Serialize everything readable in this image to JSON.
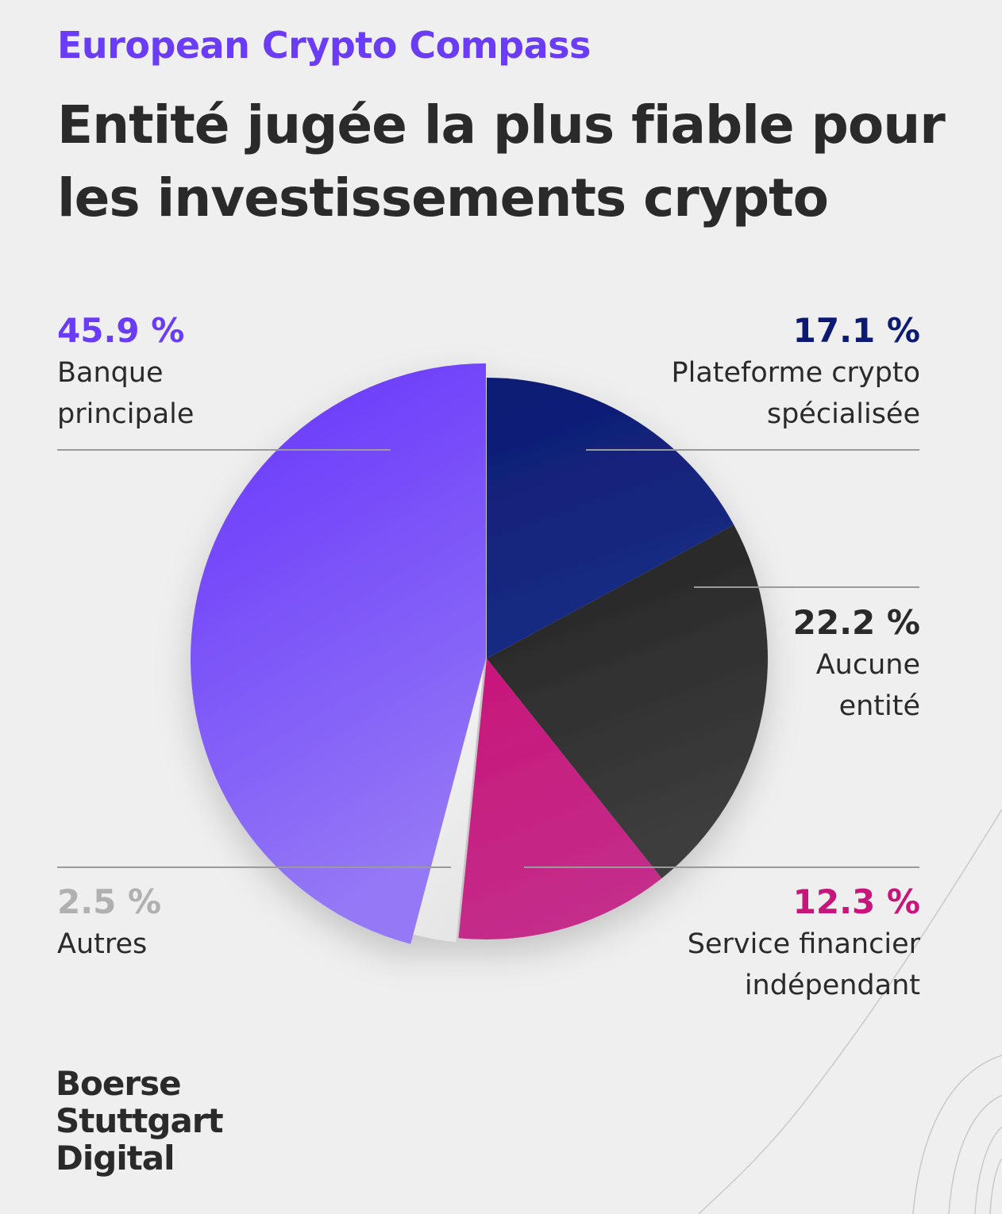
{
  "header": {
    "kicker": "European Crypto Compass",
    "title": "Entité jugée la plus fiable pour les investissements crypto"
  },
  "chart_data": {
    "type": "pie",
    "title": "Entité jugée la plus fiable pour les investissements crypto",
    "slices": [
      {
        "label": "Plateforme crypto spécialisée",
        "pct_text": "17.1 %",
        "value": 17.1,
        "color": "#0d1a73",
        "color2": "#1a2e85"
      },
      {
        "label": "Aucune entité",
        "pct_text": "22.2 %",
        "value": 22.2,
        "color": "#232323",
        "color2": "#3d3d3d"
      },
      {
        "label": "Service financier indépendant",
        "pct_text": "12.3 %",
        "value": 12.3,
        "color": "#c8157a",
        "color2": "#c42d8a"
      },
      {
        "label": "Autres",
        "pct_text": "2.5 %",
        "value": 2.5,
        "color": "#f7f7f7",
        "color2": "#e6e6e6",
        "pct_color": "#b0b0b0"
      },
      {
        "label": "Banque principale",
        "pct_text": "45.9 %",
        "value": 45.9,
        "color": "#6633fb",
        "color2": "#9478f6"
      }
    ],
    "start": "top",
    "direction": "clockwise"
  },
  "colors": {
    "banque": "#6b3cf6",
    "plateforme": "#0d1a73",
    "aucune": "#2a2a2a",
    "service": "#c8157a",
    "autres": "#b0b0b0"
  },
  "logo": {
    "line1": "Boerse",
    "line2": "Stuttgart",
    "line3": "Digital"
  }
}
